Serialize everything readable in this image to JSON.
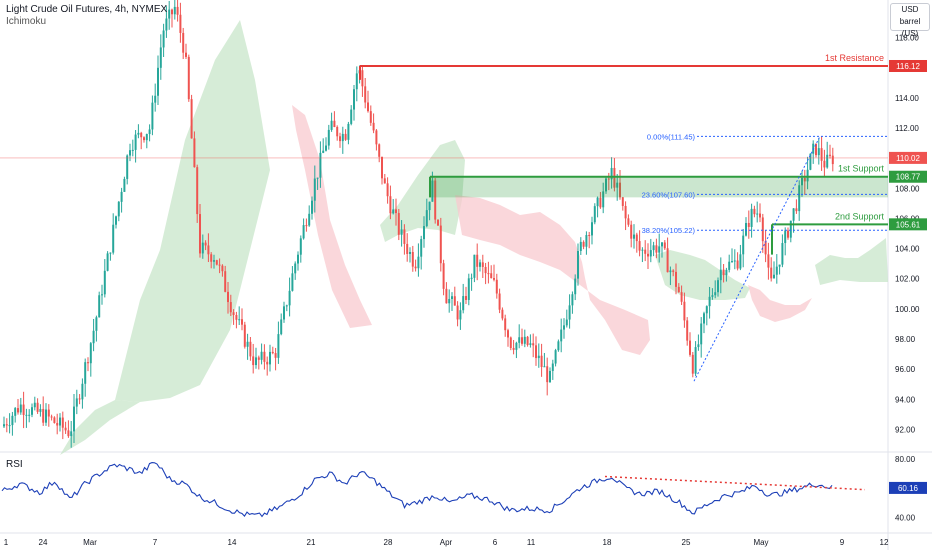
{
  "header": {
    "symbol_line": "Light Crude Oil Futures, 4h, NYMEX",
    "indicator": "Ichimoku",
    "currency": "USD",
    "unit": "barrel (US)"
  },
  "rsi": {
    "label": "RSI",
    "value": "60.16",
    "axis_ticks": [
      "80.00",
      "60.00",
      "40.00"
    ]
  },
  "colors": {
    "up": "#26a69a",
    "down": "#ef5350",
    "resistance": "#e53935",
    "support": "#2e9c3f",
    "fib": "#2962ff",
    "rsi_line": "#1c3fb7",
    "cloud_green": "#c8e6c9",
    "cloud_red": "#f8c9cf"
  },
  "chart_data": {
    "type": "candlestick",
    "y_ticks": [
      "118.00",
      "116.00",
      "114.00",
      "112.00",
      "110.00",
      "108.00",
      "106.00",
      "104.00",
      "102.00",
      "100.00",
      "98.00",
      "96.00",
      "94.00",
      "92.00"
    ],
    "ylim": [
      90.5,
      120.5
    ],
    "x_ticks": [
      "1",
      "24",
      "Mar",
      "7",
      "14",
      "21",
      "28",
      "Apr",
      "6",
      "11",
      "18",
      "25",
      "May",
      "9",
      "12"
    ],
    "levels": [
      {
        "name": "1st Resistance",
        "value": "116.12",
        "color": "#e53935"
      },
      {
        "name": "1st Support",
        "value": "108.77",
        "color": "#2e9c3f"
      },
      {
        "name": "2nd Support",
        "value": "105.61",
        "color": "#2e9c3f"
      }
    ],
    "fib": [
      {
        "label": "0.00%(111.45)",
        "value": 111.45
      },
      {
        "label": "23.60%(107.60)",
        "value": 107.6
      },
      {
        "label": "38.20%(105.22)",
        "value": 105.22
      }
    ],
    "last_price": "110.02",
    "rsi_last": "60.16"
  }
}
